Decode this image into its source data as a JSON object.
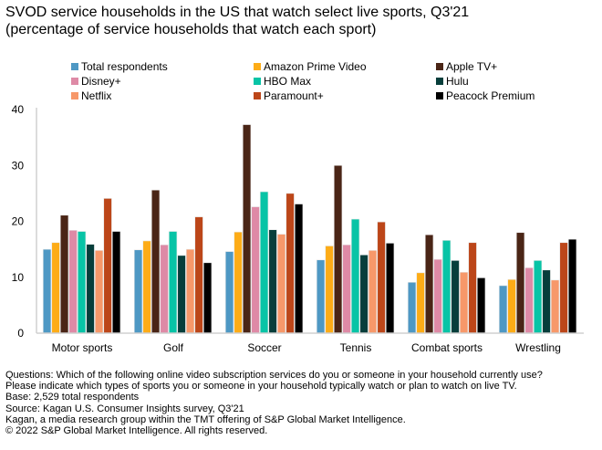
{
  "chart_data": {
    "type": "bar",
    "title": "SVOD service households in the US that watch select live sports, Q3'21",
    "subtitle": "(percentage of service households that watch each sport)",
    "categories": [
      "Motor sports",
      "Golf",
      "Soccer",
      "Tennis",
      "Combat sports",
      "Wrestling"
    ],
    "ylim": [
      0,
      40
    ],
    "yticks": [
      0,
      10,
      20,
      30,
      40
    ],
    "grid": false,
    "legend_position": "top",
    "series": [
      {
        "name": "Total respondents",
        "color": "#4e98c4",
        "values": [
          15.0,
          14.9,
          14.6,
          13.1,
          9.1,
          8.5
        ]
      },
      {
        "name": "Amazon Prime Video",
        "color": "#fdac17",
        "values": [
          16.2,
          16.5,
          18.1,
          15.6,
          10.8,
          9.6
        ]
      },
      {
        "name": "Apple TV+",
        "color": "#4a2516",
        "values": [
          21.1,
          25.6,
          37.3,
          30.0,
          17.6,
          18.0
        ]
      },
      {
        "name": "Disney+",
        "color": "#de8aa6",
        "values": [
          18.4,
          15.8,
          22.6,
          15.8,
          13.2,
          11.7
        ]
      },
      {
        "name": "HBO Max",
        "color": "#08c4a6",
        "values": [
          18.2,
          18.2,
          25.3,
          20.4,
          16.6,
          13.0
        ]
      },
      {
        "name": "Hulu",
        "color": "#073e3b",
        "values": [
          15.9,
          13.9,
          18.5,
          14.0,
          13.0,
          11.3
        ]
      },
      {
        "name": "Netflix",
        "color": "#f7986a",
        "values": [
          14.8,
          15.0,
          17.7,
          14.8,
          10.9,
          9.5
        ]
      },
      {
        "name": "Paramount+",
        "color": "#bc4619",
        "values": [
          24.1,
          20.8,
          25.0,
          19.9,
          16.2,
          16.2
        ]
      },
      {
        "name": "Peacock Premium",
        "color": "#000000",
        "values": [
          18.2,
          12.6,
          23.1,
          16.1,
          9.9,
          16.8
        ]
      }
    ]
  },
  "notes": [
    "Questions: Which of the following online video subscription services do you or someone in your household currently use?",
    "Please indicate which types of sports you or someone in your household typically watch or plan to watch on live TV.",
    "Base: 2,529 total respondents",
    "Source: Kagan U.S. Consumer Insights survey, Q3'21",
    "Kagan, a media research group within the TMT offering of S&P Global Market Intelligence.",
    "© 2022 S&P Global Market Intelligence. All rights reserved."
  ]
}
